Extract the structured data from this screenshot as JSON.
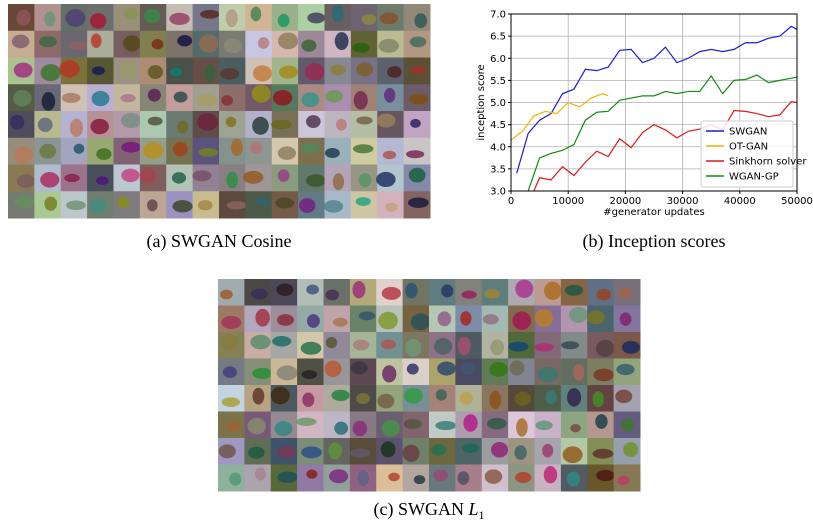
{
  "figures": {
    "a": {
      "caption": "(a) SWGAN Cosine"
    },
    "b": {
      "caption": "(b) Inception scores"
    },
    "c": {
      "caption": "(c) SWGAN",
      "math": {
        "base": "L",
        "sub": "1"
      }
    }
  },
  "chart_data": {
    "type": "line",
    "xlabel": "#generator updates",
    "ylabel": "inception score",
    "xlim": [
      0,
      50000
    ],
    "xticks": [
      0,
      10000,
      20000,
      30000,
      40000,
      50000
    ],
    "ylim": [
      3.0,
      7.0
    ],
    "yticks": [
      {
        "value": 3,
        "label": "3.0"
      },
      {
        "value": 3.5,
        "label": "3.5"
      },
      {
        "value": 4,
        "label": "4.0"
      },
      {
        "value": 4.5,
        "label": "4.5"
      },
      {
        "value": 5,
        "label": "5.0"
      },
      {
        "value": 5.5,
        "label": "5.5"
      },
      {
        "value": 6,
        "label": "6.0"
      },
      {
        "value": 6.5,
        "label": "6.5"
      },
      {
        "value": 7,
        "label": "7.0"
      }
    ],
    "grid": true,
    "legend": "lower right",
    "series": [
      {
        "name": "SWGAN",
        "color": "#1f1fd0",
        "x": [
          1000,
          3000,
          5000,
          7000,
          9000,
          11000,
          13000,
          15000,
          17000,
          19000,
          21000,
          23000,
          25000,
          27000,
          29000,
          31000,
          33000,
          35000,
          37000,
          39000,
          41000,
          43000,
          45000,
          47000,
          49000,
          50000
        ],
        "values": [
          3.4,
          4.3,
          4.6,
          4.75,
          5.2,
          5.3,
          5.75,
          5.72,
          5.8,
          6.18,
          6.2,
          5.9,
          6.0,
          6.25,
          5.9,
          6.0,
          6.15,
          6.2,
          6.15,
          6.2,
          6.35,
          6.35,
          6.45,
          6.5,
          6.72,
          6.65
        ]
      },
      {
        "name": "OT-GAN",
        "color": "#f0b400",
        "x": [
          0,
          2000,
          4000,
          6000,
          8000,
          10000,
          12000,
          14000,
          16000,
          17000
        ],
        "values": [
          4.15,
          4.35,
          4.7,
          4.8,
          4.75,
          5.0,
          4.9,
          5.1,
          5.2,
          5.15
        ]
      },
      {
        "name": "Sinkhorn solver",
        "color": "#e01818",
        "x": [
          4000,
          5000,
          7000,
          9000,
          11000,
          13000,
          15000,
          17000,
          19000,
          21000,
          23000,
          25000,
          27000,
          29000,
          31000,
          33000,
          35000,
          37000,
          39000,
          41000,
          43000,
          45000,
          47000,
          49000,
          50000
        ],
        "values": [
          3.0,
          3.3,
          3.25,
          3.55,
          3.35,
          3.65,
          3.9,
          3.78,
          4.18,
          3.98,
          4.32,
          4.5,
          4.38,
          4.2,
          4.35,
          4.4,
          4.5,
          4.38,
          4.82,
          4.8,
          4.75,
          4.68,
          4.72,
          5.02,
          5.0
        ]
      },
      {
        "name": "WGAN-GP",
        "color": "#138a13",
        "x": [
          3000,
          5000,
          7000,
          9000,
          11000,
          13000,
          15000,
          17000,
          19000,
          21000,
          23000,
          25000,
          27000,
          29000,
          31000,
          33000,
          35000,
          37000,
          39000,
          41000,
          43000,
          45000,
          47000,
          49000,
          50000
        ],
        "values": [
          3.0,
          3.75,
          3.85,
          3.92,
          4.05,
          4.6,
          4.78,
          4.8,
          5.05,
          5.1,
          5.15,
          5.15,
          5.25,
          5.2,
          5.25,
          5.25,
          5.6,
          5.2,
          5.5,
          5.52,
          5.62,
          5.45,
          5.5,
          5.55,
          5.57
        ]
      }
    ]
  }
}
